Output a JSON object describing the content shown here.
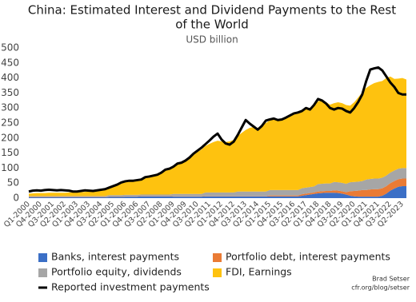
{
  "chart_data": {
    "type": "area",
    "title": [
      "China: Estimated Interest and Dividend Payments to the Rest",
      "of the World"
    ],
    "subtitle": "USD billion",
    "source": [
      "Brad Setser",
      "cfr.org/blog/setser"
    ],
    "categories": [
      "Q1-2000",
      null,
      null,
      "Q4-2000",
      null,
      null,
      "Q3-2001",
      null,
      null,
      "Q2-2002",
      null,
      null,
      "Q1-2003",
      null,
      null,
      "Q4-2003",
      null,
      null,
      "Q3-2004",
      null,
      null,
      "Q2-2005",
      null,
      null,
      "Q1-2006",
      null,
      null,
      "Q4-2006",
      null,
      null,
      "Q3-2007",
      null,
      null,
      "Q2-2008",
      null,
      null,
      "Q1-2009",
      null,
      null,
      "Q4-2009",
      null,
      null,
      "Q3-2010",
      null,
      null,
      "Q2-2011",
      null,
      null,
      "Q1-2012",
      null,
      null,
      "Q4-2012",
      null,
      null,
      "Q3-2013",
      null,
      null,
      "Q2-2014",
      null,
      null,
      "Q1-2015",
      null,
      null,
      "Q4-2015",
      null,
      null,
      "Q3-2016",
      null,
      null,
      "Q2-2017",
      null,
      null,
      "Q1-2018",
      null,
      null,
      "Q4-2018",
      null,
      null,
      "Q3-2019",
      null,
      null,
      "Q2-2020",
      null,
      null,
      "Q1-2021",
      null,
      null,
      "Q4-2021",
      null,
      null,
      "Q3-2022",
      null,
      null,
      "Q2-2023",
      null
    ],
    "ylim": [
      0,
      500
    ],
    "yticks": [
      0,
      50,
      100,
      150,
      200,
      250,
      300,
      350,
      400,
      450,
      500
    ],
    "series": [
      {
        "name": "Banks, interest payments",
        "color": "#3b6fc6",
        "values": [
          3,
          3,
          3,
          3,
          3,
          3,
          3,
          3,
          3,
          3,
          3,
          3,
          3,
          3,
          3,
          3,
          3,
          3,
          3,
          3,
          4,
          4,
          4,
          4,
          5,
          5,
          5,
          5,
          6,
          6,
          6,
          6,
          6,
          6,
          6,
          6,
          5,
          5,
          5,
          5,
          5,
          5,
          5,
          5,
          6,
          6,
          6,
          6,
          6,
          6,
          6,
          6,
          6,
          6,
          6,
          6,
          6,
          6,
          6,
          6,
          6,
          6,
          6,
          6,
          6,
          6,
          6,
          6,
          8,
          10,
          12,
          14,
          16,
          17,
          18,
          18,
          18,
          17,
          15,
          12,
          8,
          6,
          5,
          5,
          5,
          5,
          5,
          5,
          8,
          15,
          25,
          32,
          38,
          40,
          40
        ]
      },
      {
        "name": "Portfolio debt, interest payments",
        "color": "#ea7b35",
        "values": [
          1,
          1,
          1,
          1,
          1,
          1,
          1,
          1,
          1,
          1,
          1,
          1,
          1,
          1,
          1,
          1,
          1,
          1,
          1,
          1,
          1,
          1,
          1,
          1,
          1,
          1,
          1,
          1,
          1,
          1,
          1,
          1,
          1,
          1,
          1,
          1,
          1,
          1,
          1,
          1,
          1,
          1,
          1,
          1,
          1,
          1,
          1,
          1,
          1,
          1,
          1,
          1,
          1,
          1,
          1,
          1,
          1,
          1,
          1,
          1,
          3,
          3,
          3,
          3,
          3,
          3,
          3,
          3,
          5,
          5,
          5,
          5,
          6,
          6,
          6,
          6,
          8,
          8,
          8,
          8,
          15,
          18,
          20,
          22,
          22,
          24,
          25,
          25,
          25,
          25,
          25,
          25,
          25,
          25,
          25
        ]
      },
      {
        "name": "Portfolio equity, dividends",
        "color": "#a6a6a6",
        "values": [
          3,
          3,
          3,
          3,
          3,
          3,
          3,
          3,
          3,
          3,
          3,
          3,
          3,
          3,
          3,
          3,
          3,
          3,
          3,
          3,
          5,
          5,
          5,
          5,
          5,
          5,
          5,
          5,
          5,
          5,
          5,
          5,
          5,
          5,
          5,
          5,
          8,
          8,
          8,
          8,
          8,
          8,
          8,
          8,
          12,
          12,
          12,
          12,
          12,
          12,
          12,
          12,
          15,
          15,
          15,
          15,
          15,
          15,
          15,
          15,
          18,
          18,
          18,
          18,
          18,
          18,
          18,
          18,
          20,
          20,
          20,
          20,
          25,
          25,
          25,
          25,
          28,
          28,
          28,
          28,
          30,
          30,
          30,
          30,
          35,
          35,
          35,
          35,
          35,
          35,
          35,
          35,
          35,
          35,
          35
        ]
      },
      {
        "name": "FDI, Earnings",
        "color": "#fec20f",
        "values": [
          8,
          9,
          10,
          10,
          10,
          11,
          11,
          11,
          11,
          11,
          12,
          12,
          12,
          13,
          14,
          15,
          16,
          17,
          18,
          20,
          24,
          28,
          32,
          38,
          42,
          45,
          47,
          50,
          52,
          58,
          62,
          65,
          70,
          76,
          82,
          88,
          95,
          102,
          108,
          115,
          122,
          132,
          140,
          148,
          155,
          162,
          168,
          172,
          170,
          168,
          170,
          175,
          185,
          195,
          205,
          212,
          215,
          212,
          220,
          228,
          232,
          235,
          236,
          238,
          242,
          248,
          252,
          256,
          258,
          262,
          264,
          270,
          275,
          278,
          270,
          262,
          262,
          266,
          265,
          262,
          255,
          265,
          280,
          295,
          305,
          312,
          318,
          322,
          322,
          325,
          320,
          305,
          300,
          300,
          295
        ]
      },
      {
        "name": "Reported investment payments",
        "color": "#000000",
        "type": "line",
        "values": [
          22,
          25,
          26,
          25,
          27,
          28,
          27,
          26,
          27,
          26,
          25,
          22,
          22,
          24,
          26,
          25,
          24,
          26,
          28,
          30,
          35,
          40,
          45,
          52,
          56,
          58,
          58,
          60,
          62,
          70,
          72,
          75,
          78,
          85,
          95,
          98,
          105,
          115,
          118,
          125,
          135,
          148,
          158,
          168,
          180,
          192,
          205,
          215,
          195,
          182,
          178,
          188,
          210,
          235,
          260,
          248,
          238,
          228,
          240,
          258,
          262,
          265,
          260,
          262,
          268,
          275,
          282,
          285,
          290,
          300,
          295,
          310,
          330,
          325,
          315,
          300,
          295,
          300,
          298,
          290,
          285,
          300,
          320,
          345,
          390,
          428,
          432,
          435,
          425,
          405,
          385,
          370,
          350,
          345,
          345
        ]
      }
    ]
  }
}
